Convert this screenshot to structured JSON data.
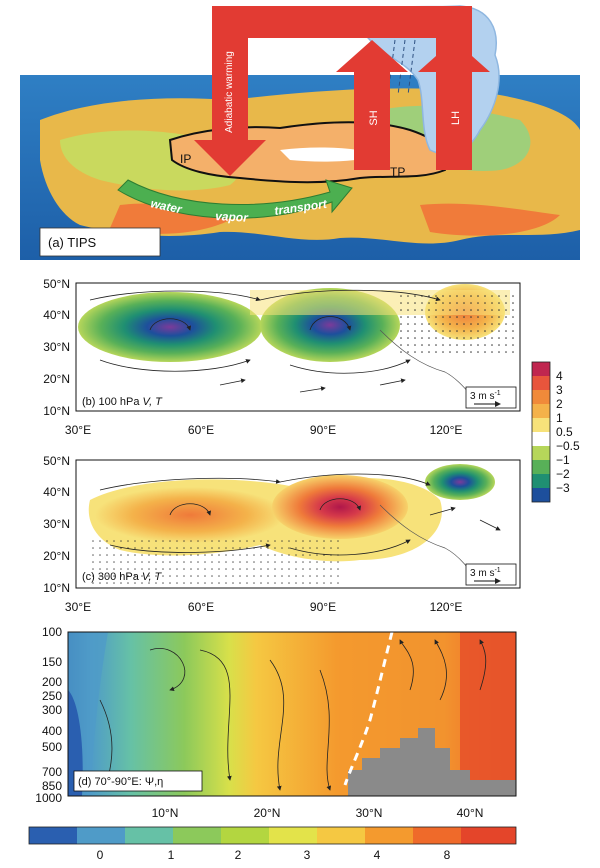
{
  "panel_a": {
    "caption": "(a) TIPS",
    "labels": {
      "ip": "IP",
      "tp": "TP",
      "sh": "SH",
      "lh": "LH",
      "adiabatic": "Adiabatic warming"
    },
    "transport_words": [
      "water",
      "vapor",
      "transport"
    ]
  },
  "panel_b": {
    "caption_prefix": "(b) 100 hPa ",
    "caption_vars": "V, T",
    "y_ticks": [
      "50°N",
      "40°N",
      "30°N",
      "20°N",
      "10°N"
    ],
    "x_ticks": [
      "30°E",
      "60°E",
      "90°E",
      "120°E"
    ],
    "vector_scale": "3 m s",
    "vector_scale_exp": "-1"
  },
  "panel_c": {
    "caption_prefix": "(c) 300 hPa ",
    "caption_vars": "V, T",
    "y_ticks": [
      "50°N",
      "40°N",
      "30°N",
      "20°N",
      "10°N"
    ],
    "x_ticks": [
      "30°E",
      "60°E",
      "90°E",
      "120°E"
    ],
    "vector_scale": "3 m s",
    "vector_scale_exp": "-1"
  },
  "colorbar_bc": {
    "labels": [
      "4",
      "3",
      "2",
      "1",
      "0.5",
      "−0.5",
      "−1",
      "−2",
      "−3"
    ],
    "colors": [
      "#c0264f",
      "#e8553c",
      "#f08a3a",
      "#f4b24a",
      "#f7e27a",
      "#ffffff",
      "#b6d65a",
      "#58b058",
      "#1f8f72",
      "#1d4f9c"
    ]
  },
  "panel_d": {
    "caption": "(d) 70°-90°E: Ψ,η",
    "y_ticks": [
      "100",
      "150",
      "200",
      "250",
      "300",
      "400",
      "500",
      "700",
      "850",
      "1000"
    ],
    "x_ticks": [
      "10°N",
      "20°N",
      "30°N",
      "40°N"
    ]
  },
  "colorbar_d": {
    "labels": [
      "0",
      "1",
      "2",
      "3",
      "4",
      "8"
    ],
    "colors": [
      "#2a5fb0",
      "#4f9bc8",
      "#66c1a6",
      "#8cc95b",
      "#b3d640",
      "#e3e34a",
      "#f5c842",
      "#f49a2e",
      "#ef6a2a",
      "#e4452a"
    ]
  }
}
